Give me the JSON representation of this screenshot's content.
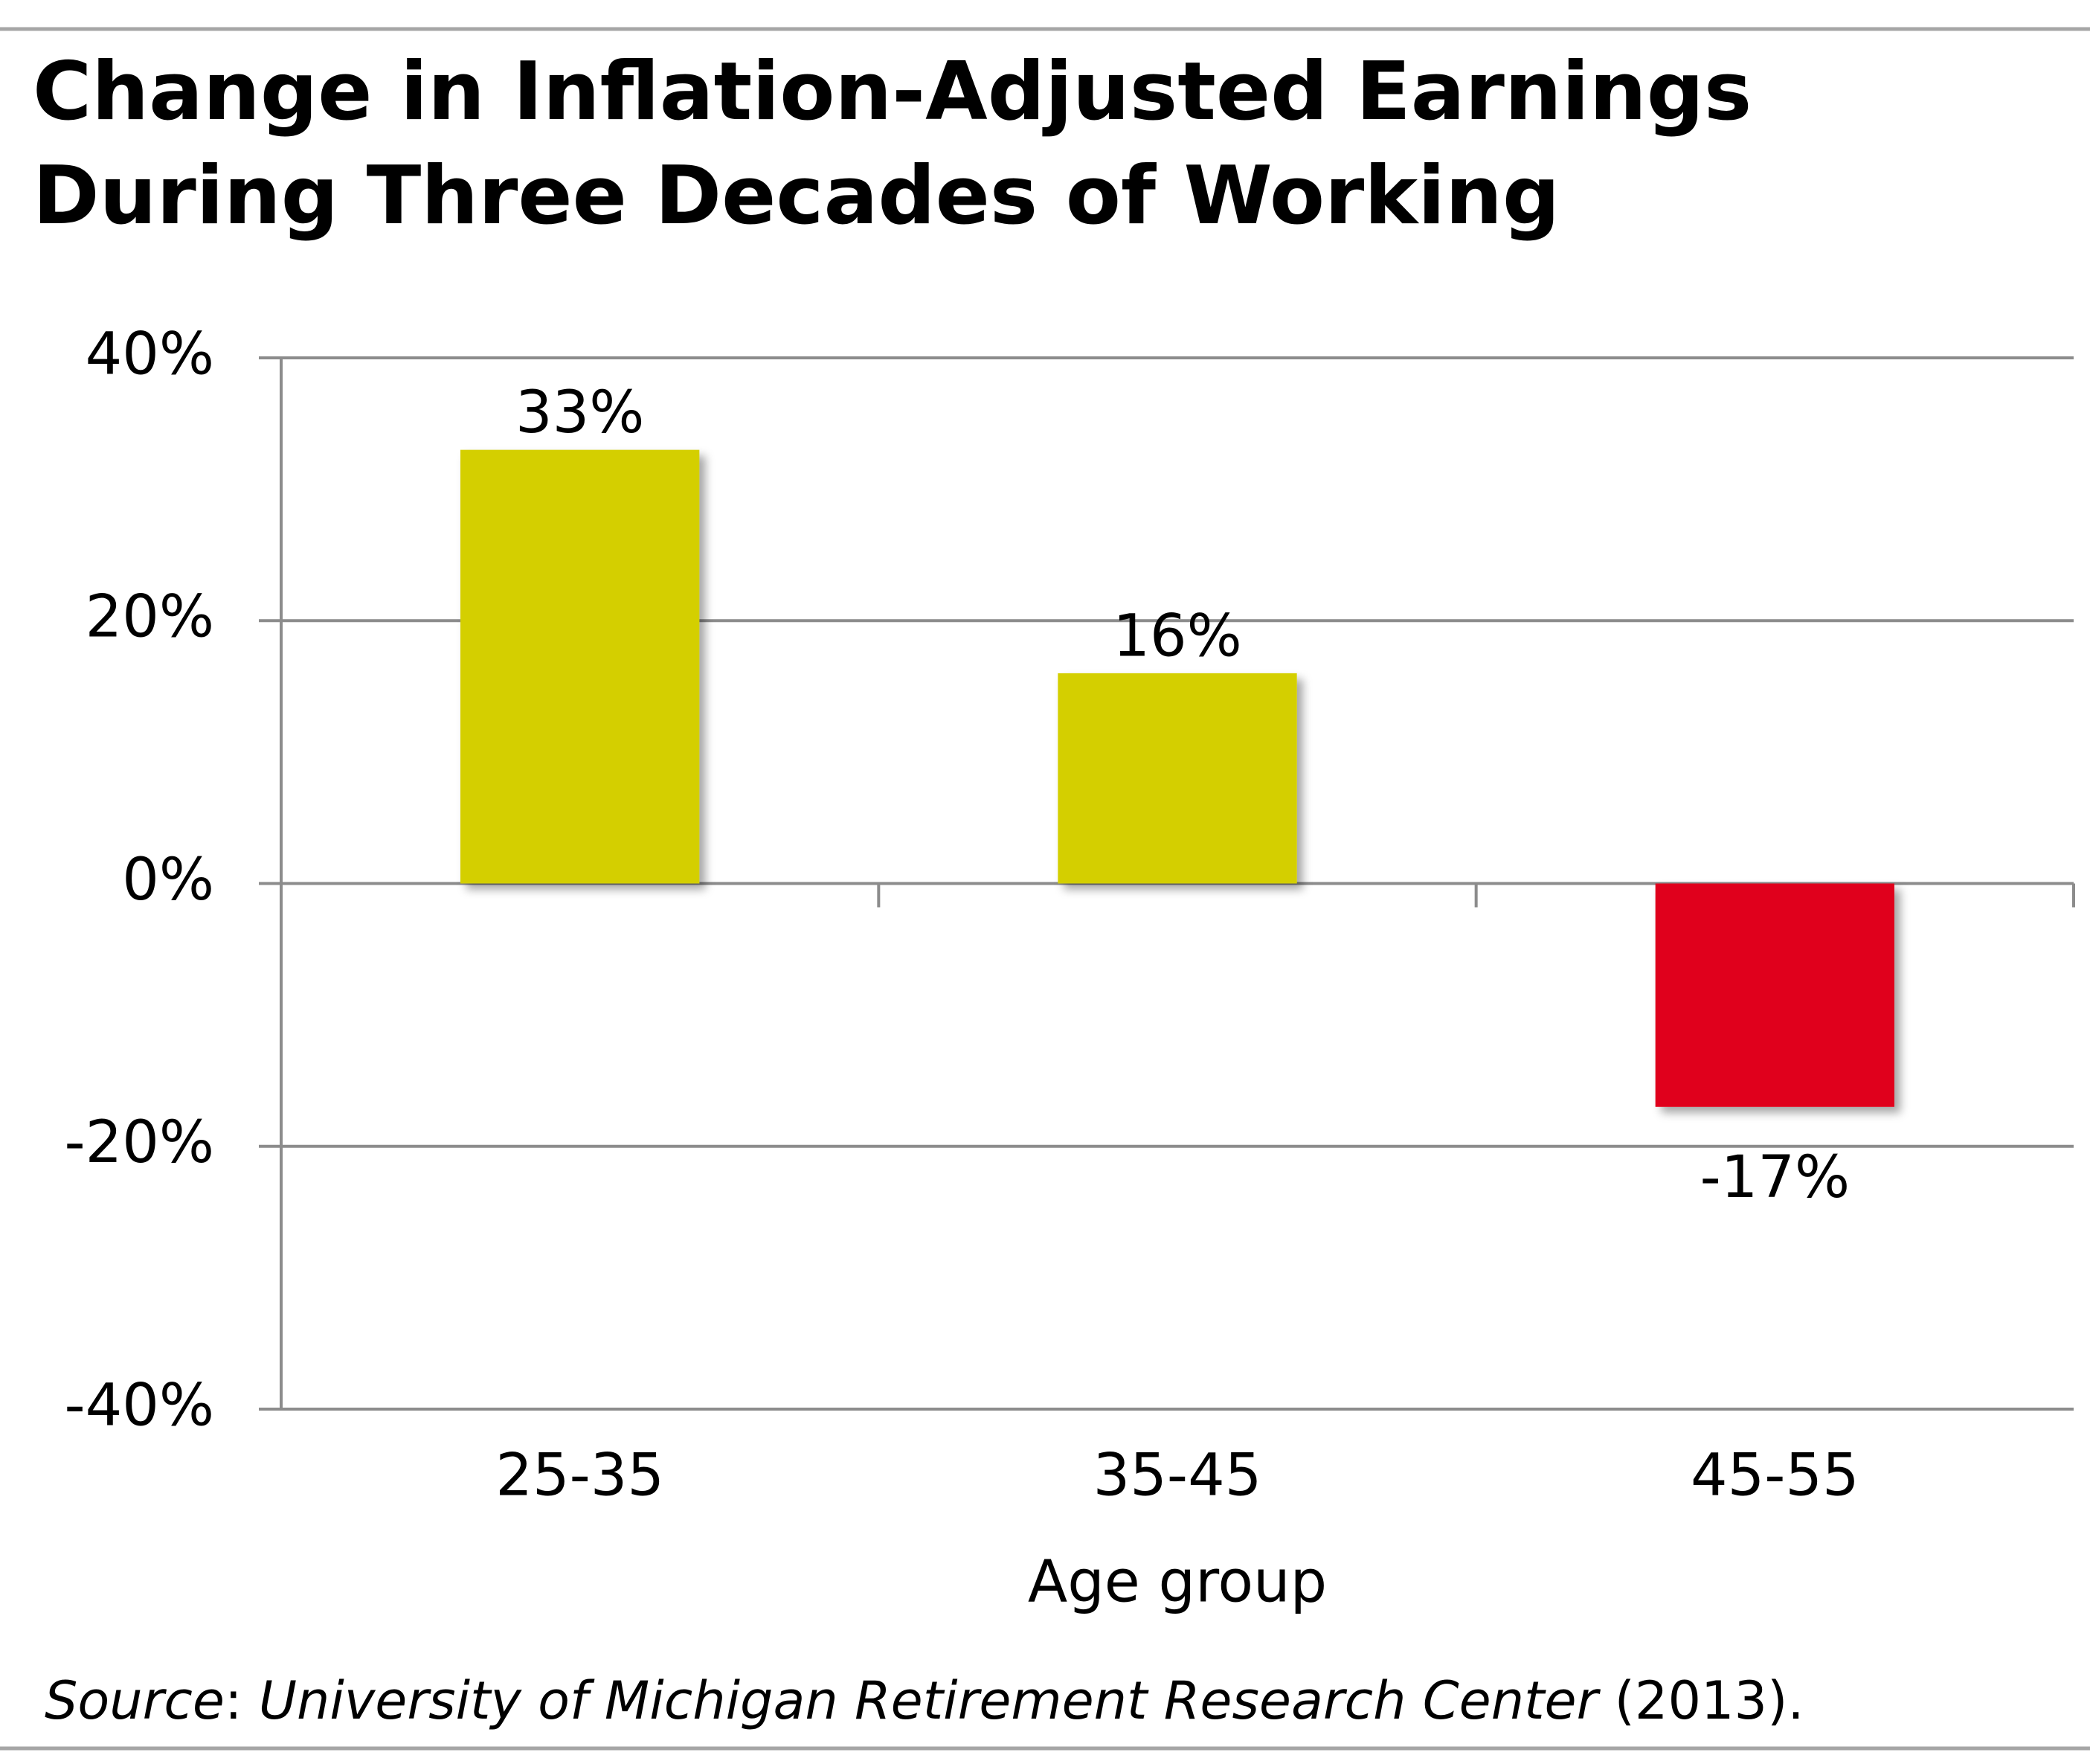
{
  "chart_data": {
    "type": "bar",
    "title": [
      "Change in Inflation-Adjusted Earnings",
      "During Three Decades of Working"
    ],
    "categories": [
      "25-35",
      "35-45",
      "45-55"
    ],
    "values": [
      33,
      16,
      -17
    ],
    "value_labels": [
      "33%",
      "16%",
      "-17%"
    ],
    "colors": [
      "#d4cf00",
      "#d4cf00",
      "#e0001a"
    ],
    "x_label": "Age group",
    "ylim": [
      -40,
      40
    ],
    "yticks": [
      {
        "value": -40,
        "label": "-40%"
      },
      {
        "value": -20,
        "label": "-20%"
      },
      {
        "value": 0,
        "label": "0%"
      },
      {
        "value": 20,
        "label": "20%"
      },
      {
        "value": 40,
        "label": "40%"
      }
    ],
    "grid": true,
    "source": [
      "Source",
      ": ",
      "University of Michigan Retirement Research Center",
      " (2013)."
    ]
  }
}
